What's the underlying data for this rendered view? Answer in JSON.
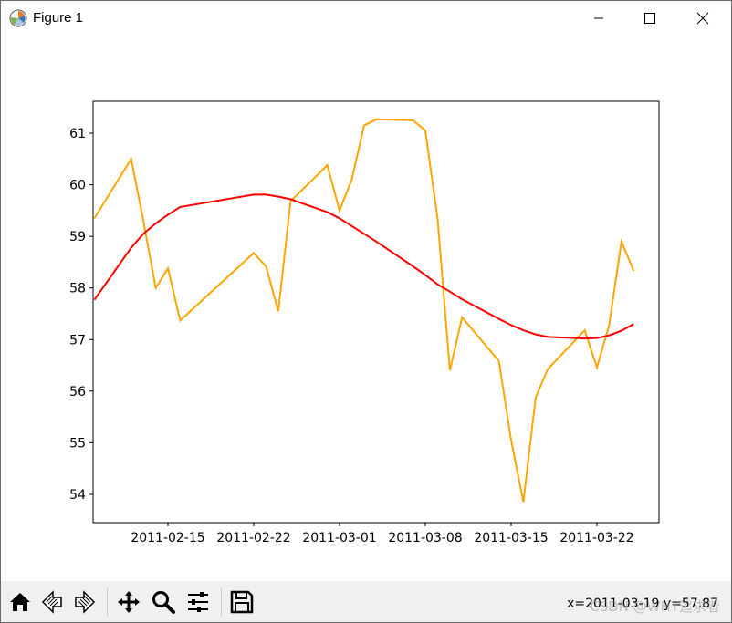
{
  "window": {
    "title": "Figure 1"
  },
  "toolbar": {
    "buttons": [
      {
        "name": "home-icon"
      },
      {
        "name": "back-arrow-icon"
      },
      {
        "name": "forward-arrow-icon"
      },
      {
        "name": "pan-icon"
      },
      {
        "name": "zoom-icon"
      },
      {
        "name": "configure-subplots-icon"
      },
      {
        "name": "save-icon"
      }
    ],
    "coordinates": "x=2011-03-19  y=57.87",
    "watermark": "CSDN @WHY追求者"
  },
  "chart_data": {
    "type": "line",
    "ylim": [
      53.45,
      61.62
    ],
    "y_ticks": [
      54,
      55,
      56,
      57,
      58,
      59,
      60,
      61
    ],
    "x_tick_labels": [
      "2011-02-15",
      "2011-02-22",
      "2011-03-01",
      "2011-03-08",
      "2011-03-15",
      "2011-03-22"
    ],
    "series": [
      {
        "color": "#ffa500",
        "points": [
          [
            "2011-02-09",
            59.35
          ],
          [
            "2011-02-12",
            60.5
          ],
          [
            "2011-02-13",
            59.3
          ],
          [
            "2011-02-14",
            58.0
          ],
          [
            "2011-02-15",
            58.38
          ],
          [
            "2011-02-16",
            57.37
          ],
          [
            "2011-02-22",
            58.68
          ],
          [
            "2011-02-23",
            58.42
          ],
          [
            "2011-02-24",
            57.55
          ],
          [
            "2011-02-25",
            59.68
          ],
          [
            "2011-02-28",
            60.38
          ],
          [
            "2011-03-01",
            59.5
          ],
          [
            "2011-03-02",
            60.1
          ],
          [
            "2011-03-03",
            61.15
          ],
          [
            "2011-03-04",
            61.27
          ],
          [
            "2011-03-07",
            61.25
          ],
          [
            "2011-03-08",
            61.05
          ],
          [
            "2011-03-09",
            59.35
          ],
          [
            "2011-03-10",
            56.4
          ],
          [
            "2011-03-11",
            57.43
          ],
          [
            "2011-03-14",
            56.58
          ],
          [
            "2011-03-15",
            55.05
          ],
          [
            "2011-03-16",
            53.85
          ],
          [
            "2011-03-17",
            55.88
          ],
          [
            "2011-03-18",
            56.43
          ],
          [
            "2011-03-21",
            57.18
          ],
          [
            "2011-03-22",
            56.46
          ],
          [
            "2011-03-23",
            57.28
          ],
          [
            "2011-03-24",
            58.9
          ],
          [
            "2011-03-25",
            58.33
          ]
        ]
      },
      {
        "color": "#ff0000",
        "points": [
          [
            "2011-02-09",
            57.77
          ],
          [
            "2011-02-12",
            58.78
          ],
          [
            "2011-02-13",
            59.05
          ],
          [
            "2011-02-14",
            59.25
          ],
          [
            "2011-02-15",
            59.42
          ],
          [
            "2011-02-16",
            59.57
          ],
          [
            "2011-02-22",
            59.81
          ],
          [
            "2011-02-23",
            59.81
          ],
          [
            "2011-02-24",
            59.77
          ],
          [
            "2011-02-25",
            59.72
          ],
          [
            "2011-02-28",
            59.47
          ],
          [
            "2011-03-01",
            59.35
          ],
          [
            "2011-03-02",
            59.2
          ],
          [
            "2011-03-03",
            59.05
          ],
          [
            "2011-03-04",
            58.9
          ],
          [
            "2011-03-07",
            58.42
          ],
          [
            "2011-03-08",
            58.25
          ],
          [
            "2011-03-09",
            58.07
          ],
          [
            "2011-03-10",
            57.93
          ],
          [
            "2011-03-11",
            57.78
          ],
          [
            "2011-03-14",
            57.4
          ],
          [
            "2011-03-15",
            57.28
          ],
          [
            "2011-03-16",
            57.18
          ],
          [
            "2011-03-17",
            57.1
          ],
          [
            "2011-03-18",
            57.05
          ],
          [
            "2011-03-21",
            57.02
          ],
          [
            "2011-03-22",
            57.03
          ],
          [
            "2011-03-23",
            57.08
          ],
          [
            "2011-03-24",
            57.17
          ],
          [
            "2011-03-25",
            57.3
          ]
        ]
      }
    ]
  }
}
